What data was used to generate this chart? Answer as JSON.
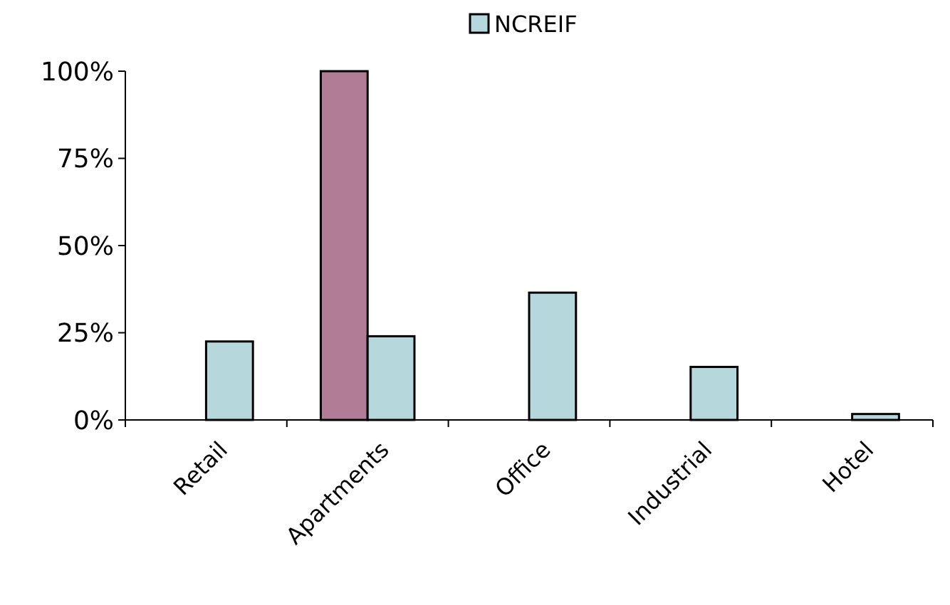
{
  "chart_data": {
    "type": "bar",
    "categories": [
      "Retail",
      "Apartments",
      "Office",
      "Industrial",
      "Hotel"
    ],
    "series": [
      {
        "color": "#b07c96",
        "values": [
          null,
          100,
          null,
          null,
          null
        ]
      },
      {
        "name": "NCREIF",
        "color": "#b6d8dd",
        "values": [
          22.5,
          24,
          36.5,
          15.2,
          1.7
        ]
      }
    ],
    "ylim": [
      0,
      100
    ],
    "yticks": [
      {
        "value": 0,
        "label": "0%"
      },
      {
        "value": 25,
        "label": "25%"
      },
      {
        "value": 50,
        "label": "50%"
      },
      {
        "value": 75,
        "label": "75%"
      },
      {
        "value": 100,
        "label": "100%"
      }
    ],
    "grid": false,
    "legend": "top"
  }
}
